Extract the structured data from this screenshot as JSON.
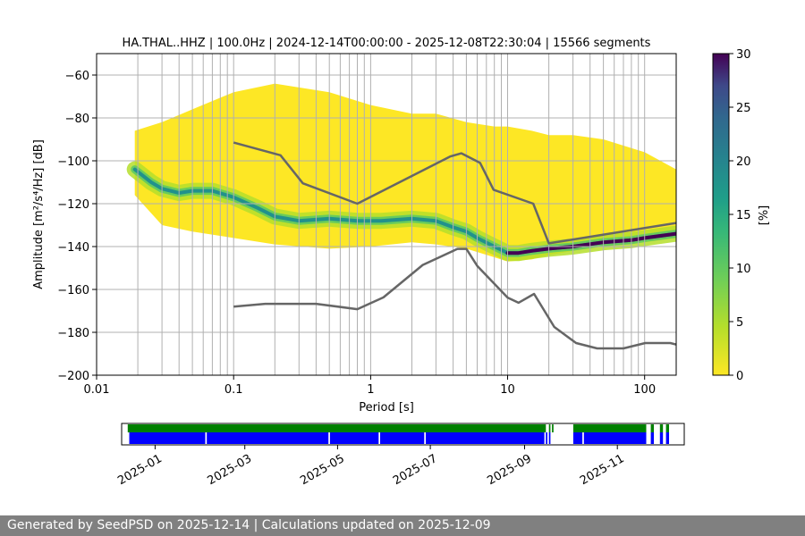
{
  "chart_data": [
    {
      "type": "heatmap",
      "title": "HA.THAL..HHZ | 100.0Hz | 2024-12-14T00:00:00 - 2025-12-08T22:30:04 | 15566 segments",
      "xlabel": "Period [s]",
      "ylabel": "Amplitude [m²/s⁴/Hz] [dB]",
      "xscale": "log",
      "xlim": [
        0.01,
        170
      ],
      "ylim": [
        -200,
        -50
      ],
      "x_ticks": [
        0.01,
        0.1,
        1,
        10,
        100
      ],
      "x_tick_labels": [
        "0.01",
        "0.1",
        "1",
        "10",
        "100"
      ],
      "y_ticks": [
        -60,
        -80,
        -100,
        -120,
        -140,
        -160,
        -180,
        -200
      ],
      "y_tick_labels": [
        "−60",
        "−80",
        "−100",
        "−120",
        "−140",
        "−160",
        "−180",
        "−200"
      ],
      "grid": true,
      "colorbar": {
        "label": "[%]",
        "range": [
          0,
          30
        ],
        "ticks": [
          0,
          5,
          10,
          15,
          20,
          25,
          30
        ],
        "tick_labels": [
          "0",
          "5",
          "10",
          "15",
          "20",
          "25",
          "30"
        ],
        "colormap": "viridis"
      },
      "mode_curve": {
        "period": [
          0.019,
          0.025,
          0.03,
          0.04,
          0.05,
          0.07,
          0.1,
          0.15,
          0.2,
          0.3,
          0.5,
          0.8,
          1.2,
          2,
          3,
          4,
          5,
          6,
          8,
          10,
          12,
          15,
          20,
          30,
          50,
          80,
          100,
          170
        ],
        "db": [
          -104,
          -110,
          -113,
          -115,
          -114,
          -114,
          -117,
          -122,
          -126,
          -128,
          -127,
          -128,
          -128,
          -127,
          -128,
          -131,
          -133,
          -136,
          -140,
          -143,
          -143,
          -142,
          -141,
          -140,
          -138,
          -137,
          -136,
          -134
        ]
      },
      "distribution_bounds": {
        "period": [
          0.019,
          0.03,
          0.05,
          0.1,
          0.2,
          0.5,
          1,
          2,
          3,
          5,
          8,
          10,
          15,
          20,
          30,
          50,
          100,
          170
        ],
        "upper_db": [
          -86,
          -82,
          -76,
          -68,
          -64,
          -68,
          -74,
          -78,
          -78,
          -82,
          -84,
          -84,
          -86,
          -88,
          -88,
          -90,
          -96,
          -104
        ],
        "lower_db": [
          -116,
          -130,
          -133,
          -136,
          -139,
          -141,
          -140,
          -138,
          -139,
          -141,
          -145,
          -147,
          -146,
          -144,
          -142,
          -140,
          -138,
          -136
        ]
      },
      "nhnm": {
        "period": [
          0.1,
          0.22,
          0.32,
          0.8,
          3.8,
          4.6,
          6.3,
          7.9,
          15.4,
          20,
          170
        ],
        "db": [
          -91.5,
          -97.4,
          -110.5,
          -120,
          -98,
          -96.5,
          -101,
          -113.5,
          -120,
          -138.5,
          -129
        ]
      },
      "nlnm": {
        "period": [
          0.1,
          0.17,
          0.4,
          0.8,
          1.24,
          2.4,
          4.3,
          5,
          6,
          10,
          12,
          15.6,
          21.9,
          31.6,
          45,
          70,
          101,
          154,
          170
        ],
        "db": [
          -168,
          -166.7,
          -166.7,
          -169.2,
          -163.7,
          -148.6,
          -141.1,
          -141.1,
          -149,
          -163.8,
          -166.2,
          -162.1,
          -177.5,
          -185,
          -187.5,
          -187.5,
          -185,
          -185,
          -185.7
        ]
      }
    },
    {
      "type": "timeline",
      "x_tick_labels": [
        "2025-01",
        "2025-03",
        "2025-05",
        "2025-07",
        "2025-09",
        "2025-11"
      ],
      "x_ticks": [
        "2025-01-01",
        "2025-03-01",
        "2025-05-01",
        "2025-07-01",
        "2025-09-01",
        "2025-11-01"
      ],
      "range": [
        "2024-12-10",
        "2025-12-15"
      ],
      "colors": {
        "processed": "#008000",
        "available": "#0000ff"
      },
      "processed_intervals": [
        [
          "2024-12-14",
          "2025-09-15"
        ],
        [
          "2025-09-17",
          "2025-09-18"
        ],
        [
          "2025-09-19",
          "2025-09-20"
        ],
        [
          "2025-10-03",
          "2025-11-20"
        ],
        [
          "2025-11-23",
          "2025-11-25"
        ],
        [
          "2025-11-29",
          "2025-12-01"
        ],
        [
          "2025-12-03",
          "2025-12-05"
        ]
      ],
      "available_intervals": [
        [
          "2024-12-15",
          "2025-02-03"
        ],
        [
          "2025-02-04",
          "2025-04-25"
        ],
        [
          "2025-04-26",
          "2025-05-28"
        ],
        [
          "2025-05-29",
          "2025-06-27"
        ],
        [
          "2025-06-28",
          "2025-09-14"
        ],
        [
          "2025-09-15",
          "2025-09-16"
        ],
        [
          "2025-09-17",
          "2025-09-18"
        ],
        [
          "2025-10-03",
          "2025-10-09"
        ],
        [
          "2025-10-10",
          "2025-11-20"
        ],
        [
          "2025-11-23",
          "2025-11-25"
        ],
        [
          "2025-11-29",
          "2025-12-01"
        ],
        [
          "2025-12-03",
          "2025-12-05"
        ]
      ]
    }
  ],
  "footer": {
    "text": "Generated by SeedPSD on 2025-12-14 | Calculations updated on 2025-12-09"
  }
}
